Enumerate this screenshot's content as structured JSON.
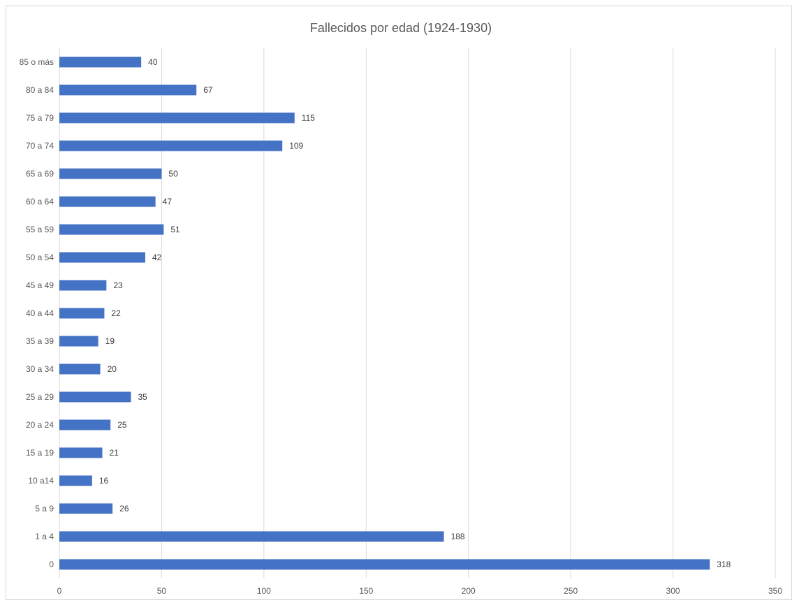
{
  "chart_data": {
    "type": "bar",
    "orientation": "horizontal",
    "title": "Fallecidos por edad (1924-1930)",
    "xlabel": "",
    "ylabel": "",
    "categories": [
      "0",
      "1 a 4",
      "5 a 9",
      "10 a14",
      "15 a 19",
      "20 a 24",
      "25 a 29",
      "30 a 34",
      "35 a 39",
      "40 a 44",
      "45 a 49",
      "50 a 54",
      "55 a 59",
      "60 a 64",
      "65 a 69",
      "70 a 74",
      "75 a 79",
      "80 a 84",
      "85 o más"
    ],
    "values": [
      318,
      188,
      26,
      16,
      21,
      25,
      35,
      20,
      19,
      22,
      23,
      42,
      51,
      47,
      50,
      109,
      115,
      67,
      40
    ],
    "xlim": [
      0,
      350
    ],
    "xticks": [
      0,
      50,
      100,
      150,
      200,
      250,
      300,
      350
    ],
    "grid": true,
    "legend": "none",
    "data_labels": true,
    "colors": {
      "bar": "#4472C4",
      "grid": "#d9d9d9",
      "text": "#595959",
      "border": "#d9d9d9"
    }
  }
}
